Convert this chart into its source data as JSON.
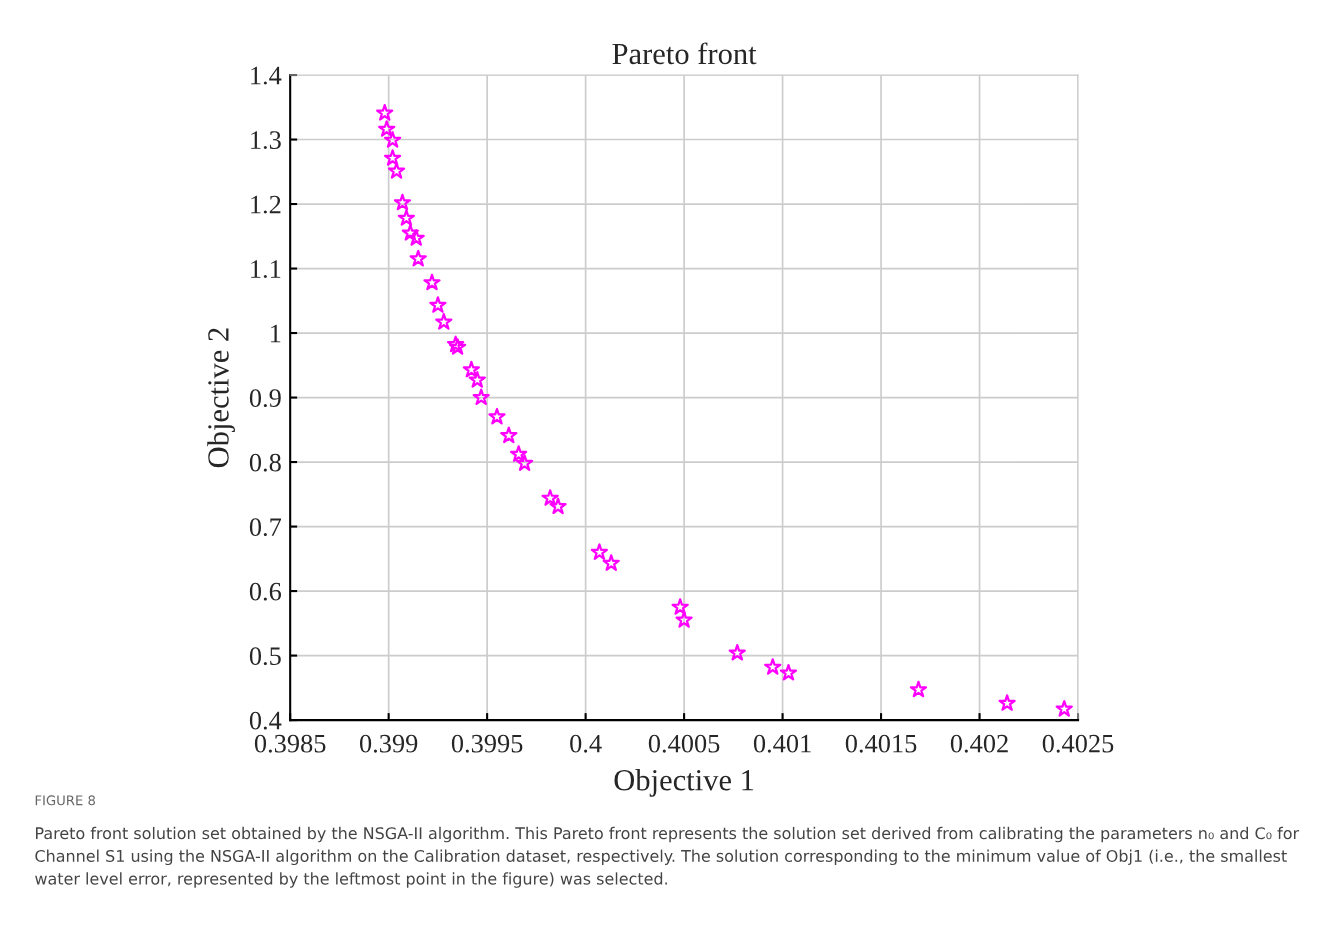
{
  "chart_data": {
    "type": "scatter",
    "title": "Pareto front",
    "xlabel": "Objective 1",
    "ylabel": "Objective 2",
    "x": [
      0.39898,
      0.39899,
      0.39902,
      0.39902,
      0.39904,
      0.39907,
      0.39909,
      0.39911,
      0.39914,
      0.39915,
      0.39922,
      0.39925,
      0.39928,
      0.39934,
      0.39935,
      0.39942,
      0.39945,
      0.39947,
      0.39955,
      0.39961,
      0.39966,
      0.39969,
      0.39982,
      0.39986,
      0.40007,
      0.40013,
      0.40048,
      0.4005,
      0.40077,
      0.40095,
      0.40103,
      0.40169,
      0.40214,
      0.40243
    ],
    "series": [
      {
        "color": "#ff00ff",
        "values": [
          1.341,
          1.316,
          1.299,
          1.271,
          1.251,
          1.202,
          1.178,
          1.155,
          1.147,
          1.115,
          1.078,
          1.043,
          1.017,
          0.982,
          0.978,
          0.943,
          0.927,
          0.9,
          0.87,
          0.841,
          0.812,
          0.798,
          0.744,
          0.731,
          0.66,
          0.643,
          0.575,
          0.555,
          0.504,
          0.482,
          0.473,
          0.447,
          0.426,
          0.417
        ]
      }
    ],
    "marker": "star",
    "grid": true,
    "xlim": [
      0.3985,
      0.4025
    ],
    "xticks": [
      0.3985,
      0.399,
      0.3995,
      0.4,
      0.4005,
      0.401,
      0.4015,
      0.402,
      0.4025
    ],
    "ylim": [
      0.4,
      1.4
    ],
    "yticks": [
      0.4,
      0.5,
      0.6,
      0.7,
      0.8,
      0.9,
      1,
      1.1,
      1.2,
      1.3,
      1.4
    ],
    "annotations": [
      "FIGURE 8",
      "Pareto front solution set obtained by the NSGA-II algorithm. This Pareto front represents the solution set derived from calibrating the parameters n₀ and C₀ for Channel S1 using the NSGA-II algorithm on the Calibration dataset, respectively. The solution corresponding to the minimum value of Obj1 (i.e., the smallest water level error, represented by the leftmost point in the figure) was selected."
    ]
  }
}
